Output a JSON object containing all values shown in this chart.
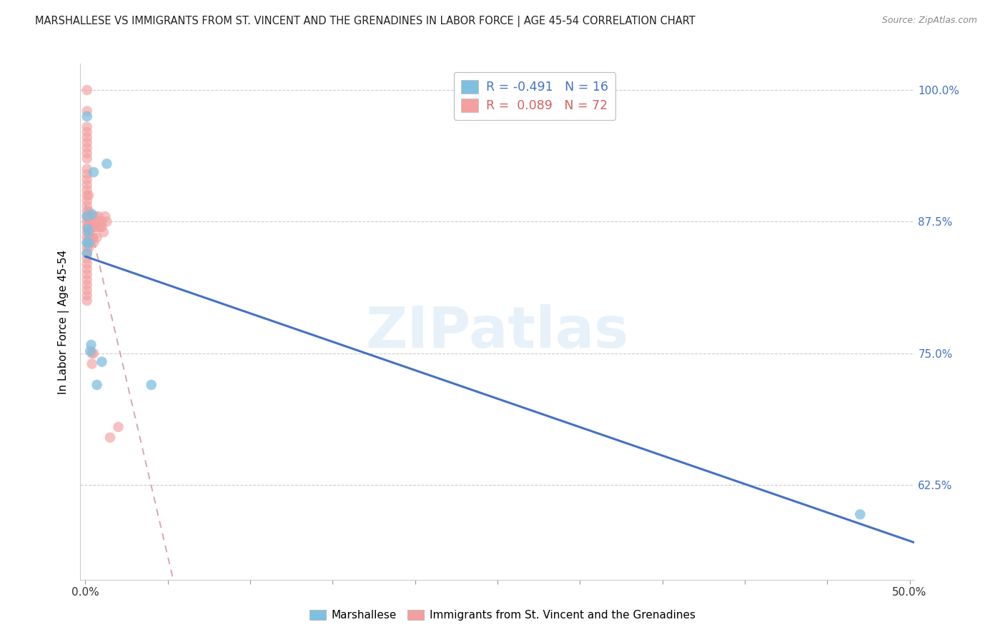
{
  "title": "MARSHALLESE VS IMMIGRANTS FROM ST. VINCENT AND THE GRENADINES IN LABOR FORCE | AGE 45-54 CORRELATION CHART",
  "source": "Source: ZipAtlas.com",
  "ylabel": "In Labor Force | Age 45-54",
  "xlim": [
    -0.003,
    0.503
  ],
  "ylim": [
    0.535,
    1.025
  ],
  "xtick_positions": [
    0.0,
    0.05,
    0.1,
    0.15,
    0.2,
    0.25,
    0.3,
    0.35,
    0.4,
    0.45,
    0.5
  ],
  "xticklabels": [
    "0.0%",
    "",
    "",
    "",
    "",
    "",
    "",
    "",
    "",
    "",
    "50.0%"
  ],
  "ytick_positions": [
    0.625,
    0.75,
    0.875,
    1.0
  ],
  "ytick_labels": [
    "62.5%",
    "75.0%",
    "87.5%",
    "100.0%"
  ],
  "marshallese_color": "#7fbfdf",
  "svg_color": "#f4a0a0",
  "legend_line1": "R = -0.491   N = 16",
  "legend_line2": "R =  0.089   N = 72",
  "legend_color1": "#4472C4",
  "legend_color2": "#d45f5f",
  "watermark": "ZIPatlas",
  "trend_marsh_color": "#4472C4",
  "trend_svg_color": "#d4a0a0",
  "marshallese_x": [
    0.001,
    0.001,
    0.001,
    0.001,
    0.0015,
    0.002,
    0.002,
    0.003,
    0.0035,
    0.004,
    0.005,
    0.007,
    0.01,
    0.013,
    0.04,
    0.47
  ],
  "marshallese_y": [
    0.975,
    0.88,
    0.855,
    0.845,
    0.868,
    0.865,
    0.855,
    0.752,
    0.758,
    0.882,
    0.922,
    0.72,
    0.742,
    0.93,
    0.72,
    0.597
  ],
  "svg_x": [
    0.001,
    0.001,
    0.001,
    0.001,
    0.001,
    0.001,
    0.001,
    0.001,
    0.001,
    0.001,
    0.001,
    0.001,
    0.001,
    0.001,
    0.001,
    0.001,
    0.001,
    0.001,
    0.001,
    0.001,
    0.001,
    0.001,
    0.001,
    0.001,
    0.001,
    0.001,
    0.001,
    0.001,
    0.001,
    0.001,
    0.001,
    0.001,
    0.001,
    0.001,
    0.001,
    0.002,
    0.002,
    0.002,
    0.002,
    0.002,
    0.002,
    0.002,
    0.002,
    0.002,
    0.003,
    0.003,
    0.003,
    0.003,
    0.003,
    0.004,
    0.004,
    0.004,
    0.004,
    0.004,
    0.005,
    0.005,
    0.005,
    0.005,
    0.006,
    0.006,
    0.007,
    0.007,
    0.008,
    0.008,
    0.009,
    0.01,
    0.01,
    0.011,
    0.012,
    0.013,
    0.015,
    0.02
  ],
  "svg_y": [
    1.0,
    0.98,
    0.965,
    0.96,
    0.955,
    0.95,
    0.945,
    0.94,
    0.935,
    0.925,
    0.92,
    0.915,
    0.91,
    0.905,
    0.9,
    0.895,
    0.89,
    0.885,
    0.88,
    0.875,
    0.87,
    0.865,
    0.86,
    0.855,
    0.85,
    0.845,
    0.84,
    0.835,
    0.83,
    0.825,
    0.82,
    0.815,
    0.81,
    0.805,
    0.8,
    0.9,
    0.885,
    0.88,
    0.875,
    0.87,
    0.865,
    0.86,
    0.855,
    0.85,
    0.88,
    0.875,
    0.87,
    0.86,
    0.855,
    0.88,
    0.87,
    0.86,
    0.75,
    0.74,
    0.87,
    0.86,
    0.855,
    0.75,
    0.88,
    0.87,
    0.87,
    0.86,
    0.88,
    0.875,
    0.87,
    0.875,
    0.87,
    0.865,
    0.88,
    0.875,
    0.67,
    0.68
  ]
}
